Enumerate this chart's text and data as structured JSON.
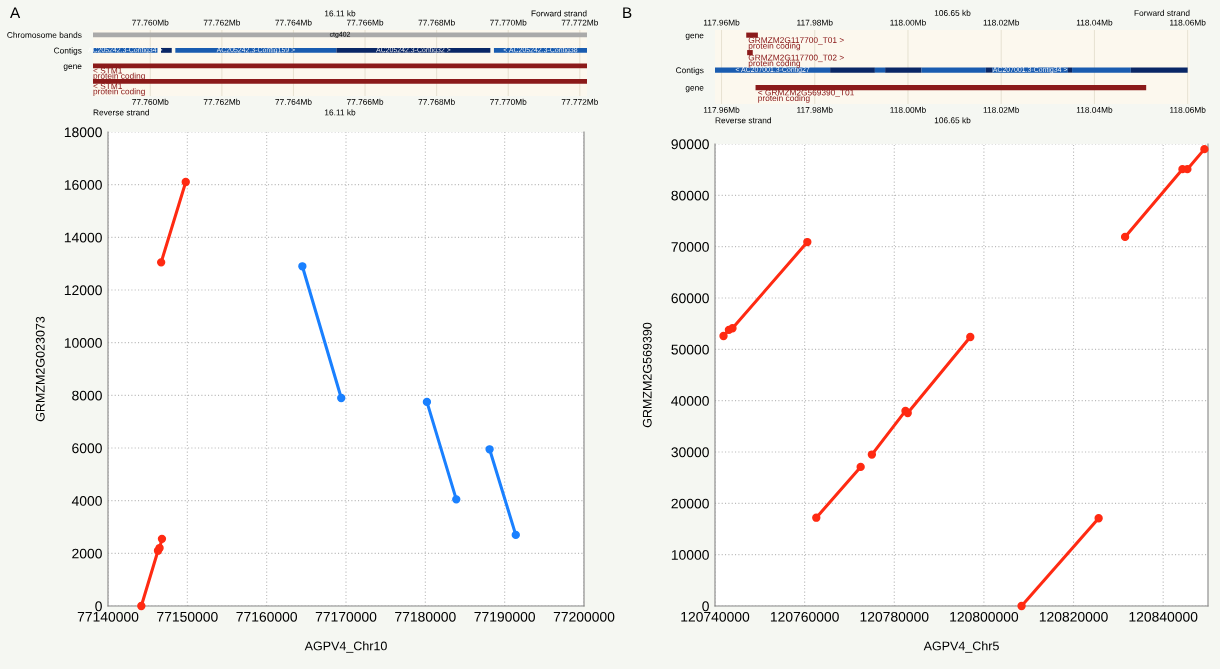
{
  "chart_data": [
    {
      "type": "bar",
      "orientation": "horizontal",
      "title": "A",
      "categories": [
        "Chromosome bands",
        "Contigs",
        "gene",
        null
      ],
      "grid": "x",
      "xlim": [
        77.7584,
        77.7722
      ],
      "xticks": [
        {
          "value": 77.76,
          "label": "77.760Mb"
        },
        {
          "value": 77.762,
          "label": "77.762Mb"
        },
        {
          "value": 77.764,
          "label": "77.764Mb"
        },
        {
          "value": 77.766,
          "label": "77.766Mb"
        },
        {
          "value": 77.768,
          "label": "77.768Mb"
        },
        {
          "value": 77.77,
          "label": "77.770Mb"
        },
        {
          "value": 77.772,
          "label": "77.772Mb"
        }
      ],
      "x2lim": [
        77.7584,
        77.7722
      ],
      "x2ticks": [
        {
          "value": 77.76,
          "label": "77.760Mb"
        },
        {
          "value": 77.762,
          "label": "77.762Mb"
        },
        {
          "value": 77.764,
          "label": "77.764Mb"
        },
        {
          "value": 77.766,
          "label": "77.766Mb"
        },
        {
          "value": 77.768,
          "label": "77.768Mb"
        },
        {
          "value": 77.77,
          "label": "77.770Mb"
        },
        {
          "value": 77.772,
          "label": "77.772Mb"
        }
      ],
      "series": [
        {
          "color": "#aaaaaa",
          "base": [
            77.7584,
            null,
            null,
            null
          ],
          "values": [
            0.0138,
            null,
            null,
            null
          ],
          "value_labels": [
            "ctg402",
            null,
            null,
            null
          ]
        },
        {
          "color": "#1a5cb0",
          "base": [
            null,
            77.7584,
            null,
            null
          ],
          "values": [
            null,
            0.0018,
            null,
            null
          ],
          "value_labels": [
            null,
            "AC205242.3-Contig34 >",
            null,
            null
          ]
        },
        {
          "color": "#0a2766",
          "base": [
            null,
            77.7603,
            null,
            null
          ],
          "values": [
            null,
            0.0003,
            null,
            null
          ]
        },
        {
          "color": "#1a5cb0",
          "base": [
            null,
            77.7607,
            null,
            null
          ],
          "values": [
            null,
            0.0045,
            null,
            null
          ],
          "value_labels": [
            null,
            "AC205242.3-Contig159 >",
            null,
            null
          ]
        },
        {
          "color": "#0a2766",
          "base": [
            null,
            77.7652,
            null,
            null
          ],
          "values": [
            null,
            0.0043,
            null,
            null
          ],
          "value_labels": [
            null,
            "AC205242.3-Contig32 >",
            null,
            null
          ]
        },
        {
          "color": "#1a5cb0",
          "base": [
            null,
            77.7696,
            null,
            null
          ],
          "values": [
            null,
            0.0026,
            null,
            null
          ],
          "value_labels": [
            null,
            "< AC205242.3-Contig38",
            null,
            null
          ]
        },
        {
          "color": "#8b1a1a",
          "base": [
            null,
            null,
            77.7584,
            77.7584
          ],
          "values": [
            null,
            null,
            0.0138,
            0.0138
          ]
        }
      ],
      "annotations": [
        "16.11 kb",
        "Forward strand",
        "< STM1",
        "protein coding",
        "< STM1",
        "protein coding",
        "Reverse strand",
        "16.11 kb"
      ]
    },
    {
      "type": "line",
      "xlabel": "AGPV4_Chr10",
      "ylabel": "GRMZM2G023073",
      "xlim": [
        77140000,
        77200000
      ],
      "xticks": [
        77140000,
        77150000,
        77160000,
        77170000,
        77180000,
        77190000,
        77200000
      ],
      "ylim": [
        0,
        18000
      ],
      "yticks": [
        0,
        2000,
        4000,
        6000,
        8000,
        10000,
        12000,
        14000,
        16000,
        18000
      ],
      "grid": true,
      "marker": "circle",
      "line_style": "solid",
      "series": [
        {
          "color": "#ff2a12",
          "x": [
            77144200,
            77146300,
            77146500,
            77146800
          ],
          "values": [
            0,
            2100,
            2200,
            2550
          ]
        },
        {
          "color": "#ff2a12",
          "x": [
            77146700,
            77149800
          ],
          "values": [
            13050,
            16100
          ]
        },
        {
          "color": "#1a80ff",
          "x": [
            77164500,
            77169400
          ],
          "values": [
            12900,
            7900
          ]
        },
        {
          "color": "#1a80ff",
          "x": [
            77180200,
            77183900
          ],
          "values": [
            7750,
            4050
          ]
        },
        {
          "color": "#1a80ff",
          "x": [
            77188100,
            77191400
          ],
          "values": [
            5950,
            2700
          ]
        }
      ]
    },
    {
      "type": "bar",
      "orientation": "horizontal",
      "title": "B",
      "categories": [
        "gene",
        null,
        "Contigs",
        "gene"
      ],
      "grid": "x",
      "xlim": [
        117.9586,
        118.0605
      ],
      "xticks": [
        {
          "value": 117.96,
          "label": "117.96Mb"
        },
        {
          "value": 117.98,
          "label": "117.98Mb"
        },
        {
          "value": 118.0,
          "label": "118.00Mb"
        },
        {
          "value": 118.02,
          "label": "118.02Mb"
        },
        {
          "value": 118.04,
          "label": "118.04Mb"
        },
        {
          "value": 118.06,
          "label": "118.06Mb"
        }
      ],
      "x2lim": [
        117.9586,
        118.0605
      ],
      "x2ticks": [
        {
          "value": 117.96,
          "label": "117.96Mb"
        },
        {
          "value": 117.98,
          "label": "117.98Mb"
        },
        {
          "value": 118.0,
          "label": "118.00Mb"
        },
        {
          "value": 118.02,
          "label": "118.02Mb"
        },
        {
          "value": 118.04,
          "label": "118.04Mb"
        },
        {
          "value": 118.06,
          "label": "118.06Mb"
        }
      ],
      "series": [
        {
          "color": "#8b1a1a",
          "base": [
            117.9653,
            117.9655,
            null,
            117.9673
          ],
          "values": [
            0.0025,
            0.0012,
            null,
            0.0838
          ]
        },
        {
          "color": "#1a5cb0",
          "base": [
            null,
            null,
            117.9586,
            null
          ],
          "values": [
            null,
            null,
            0.0247,
            null
          ],
          "value_labels": [
            null,
            null,
            "< AC207001.3-Contig27",
            null
          ]
        },
        {
          "color": "#0a2766",
          "base": [
            null,
            null,
            117.9833,
            null
          ],
          "values": [
            null,
            null,
            0.0096,
            null
          ]
        },
        {
          "color": "#1a5cb0",
          "base": [
            null,
            null,
            117.9929,
            null
          ],
          "values": [
            null,
            null,
            0.0022,
            null
          ]
        },
        {
          "color": "#0a2766",
          "base": [
            null,
            null,
            117.9951,
            null
          ],
          "values": [
            null,
            null,
            0.0078,
            null
          ]
        },
        {
          "color": "#1a5cb0",
          "base": [
            null,
            null,
            118.0029,
            null
          ],
          "values": [
            null,
            null,
            0.0138,
            null
          ]
        },
        {
          "color": "#0a2766",
          "base": [
            null,
            null,
            118.0167,
            null
          ],
          "values": [
            null,
            null,
            0.0014,
            null
          ]
        },
        {
          "color": "#1a5cb0",
          "base": [
            null,
            null,
            118.0181,
            null
          ],
          "values": [
            null,
            null,
            0.0162,
            null
          ],
          "value_labels": [
            null,
            null,
            "AC207001.3-Contig34 >",
            null
          ]
        },
        {
          "color": "#0a2766",
          "base": [
            null,
            null,
            118.0343,
            null
          ],
          "values": [
            null,
            null,
            0.0009,
            null
          ]
        },
        {
          "color": "#1a5cb0",
          "base": [
            null,
            null,
            118.0352,
            null
          ],
          "values": [
            null,
            null,
            0.0126,
            null
          ]
        },
        {
          "color": "#0a2766",
          "base": [
            null,
            null,
            118.0478,
            null
          ],
          "values": [
            null,
            null,
            0.0122,
            null
          ]
        }
      ],
      "annotations": [
        "106.65 kb",
        "Forward strand",
        "GRMZM2G117700_T01 >",
        "protein coding",
        "GRMZM2G117700_T02 >",
        "protein coding",
        "< GRMZM2G569390_T01",
        "protein coding",
        "Reverse strand",
        "106.65 kb"
      ]
    },
    {
      "type": "line",
      "xlabel": "AGPV4_Chr5",
      "ylabel": "GRMZM2G569390",
      "xlim": [
        120740000,
        120850000
      ],
      "xticks": [
        120740000,
        120760000,
        120780000,
        120800000,
        120820000,
        120840000
      ],
      "ylim": [
        0,
        90000
      ],
      "yticks": [
        0,
        10000,
        20000,
        30000,
        40000,
        50000,
        60000,
        70000,
        80000,
        90000
      ],
      "grid": true,
      "marker": "circle",
      "line_style": "solid",
      "series": [
        {
          "color": "#ff2a12",
          "x": [
            120741900,
            120743100,
            120743900,
            120760600
          ],
          "values": [
            52600,
            53800,
            54100,
            70900
          ]
        },
        {
          "color": "#ff2a12",
          "x": [
            120762600,
            120772500
          ],
          "values": [
            17200,
            27100
          ]
        },
        {
          "color": "#ff2a12",
          "x": [
            120775000,
            120782500,
            120783000,
            120796960
          ],
          "values": [
            29500,
            38000,
            37600,
            52400
          ]
        },
        {
          "color": "#ff2a12",
          "x": [
            120808400,
            120825600
          ],
          "values": [
            0,
            17100
          ]
        },
        {
          "color": "#ff2a12",
          "x": [
            120831500,
            120844300,
            120845400,
            120849200
          ],
          "values": [
            71900,
            85100,
            85100,
            89000
          ]
        }
      ]
    }
  ]
}
